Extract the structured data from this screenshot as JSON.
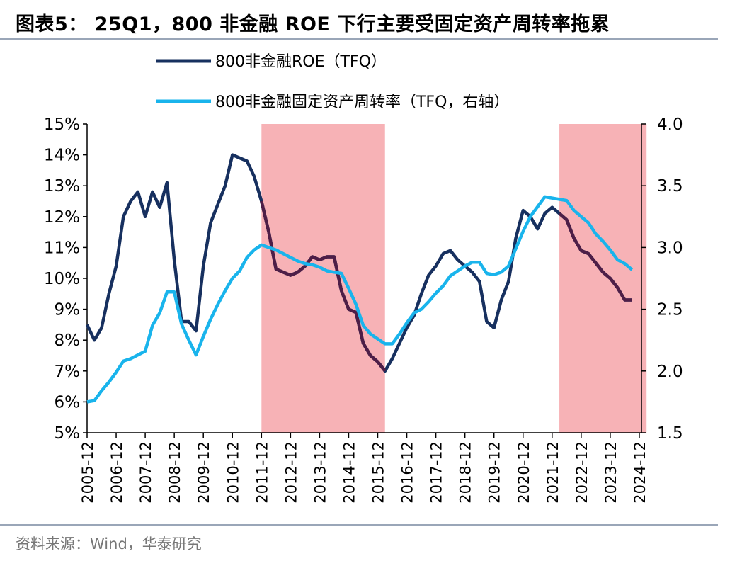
{
  "title": "图表5： 25Q1，800 非金融 ROE 下行主要受固定资产周转率拖累",
  "source": "资料来源：Wind，华泰研究",
  "chart_data": {
    "type": "line",
    "legend": [
      "800非金融ROE（TFQ）",
      "800非金融固定资产周转率（TFQ，右轴）"
    ],
    "colors": {
      "roe": "#17305f",
      "turnover": "#19b4ec",
      "shade": "#f7b2b6"
    },
    "x_tick_labels": [
      "2005-12",
      "2006-12",
      "2007-12",
      "2008-12",
      "2009-12",
      "2010-12",
      "2011-12",
      "2012-12",
      "2013-12",
      "2014-12",
      "2015-12",
      "2016-12",
      "2017-12",
      "2018-12",
      "2019-12",
      "2020-12",
      "2021-12",
      "2022-12",
      "2023-12",
      "2024-12"
    ],
    "y_left": {
      "min": 5,
      "max": 15,
      "step": 1,
      "format": "percent",
      "tick_labels": [
        "5%",
        "6%",
        "7%",
        "8%",
        "9%",
        "10%",
        "11%",
        "12%",
        "13%",
        "14%",
        "15%"
      ]
    },
    "y_right": {
      "min": 1.5,
      "max": 4.0,
      "step": 0.5,
      "tick_labels": [
        "1.5",
        "2.0",
        "2.5",
        "3.0",
        "3.5",
        "4.0"
      ]
    },
    "shaded_periods": [
      [
        "2011-12",
        "2016-03"
      ],
      [
        "2022-03",
        "2025-03"
      ]
    ],
    "highlight_color_in_shaded": "#4e1e47",
    "series": [
      {
        "name": "800非金融ROE（TFQ）",
        "axis": "left",
        "x_start": "2005-12",
        "frequency": "quarterly",
        "values": [
          8.5,
          8.0,
          8.4,
          9.5,
          10.4,
          12.0,
          12.5,
          12.8,
          12.0,
          12.8,
          12.3,
          13.1,
          10.6,
          8.6,
          8.6,
          8.3,
          10.4,
          11.8,
          12.4,
          13.0,
          14.0,
          13.9,
          13.8,
          13.3,
          12.5,
          11.5,
          10.3,
          10.2,
          10.1,
          10.2,
          10.4,
          10.7,
          10.6,
          10.7,
          10.7,
          9.6,
          9.0,
          8.9,
          7.9,
          7.5,
          7.3,
          7.0,
          7.4,
          7.9,
          8.4,
          8.8,
          9.5,
          10.1,
          10.4,
          10.8,
          10.9,
          10.6,
          10.4,
          10.2,
          9.9,
          8.6,
          8.4,
          9.3,
          9.9,
          11.3,
          12.2,
          12.0,
          11.6,
          12.1,
          12.3,
          12.1,
          11.9,
          11.3,
          10.9,
          10.8,
          10.5,
          10.2,
          10.0,
          9.7,
          9.3,
          9.3
        ]
      },
      {
        "name": "800非金融固定资产周转率（TFQ，右轴）",
        "axis": "right",
        "x_start": "2005-12",
        "frequency": "quarterly",
        "values": [
          1.75,
          1.76,
          1.84,
          1.91,
          1.99,
          2.08,
          2.1,
          2.13,
          2.16,
          2.37,
          2.47,
          2.64,
          2.64,
          2.38,
          2.25,
          2.13,
          2.28,
          2.42,
          2.54,
          2.65,
          2.75,
          2.81,
          2.92,
          2.98,
          3.02,
          3.0,
          2.98,
          2.95,
          2.92,
          2.89,
          2.87,
          2.86,
          2.84,
          2.81,
          2.8,
          2.79,
          2.67,
          2.54,
          2.37,
          2.3,
          2.26,
          2.22,
          2.22,
          2.3,
          2.39,
          2.47,
          2.5,
          2.56,
          2.63,
          2.69,
          2.77,
          2.81,
          2.85,
          2.88,
          2.88,
          2.79,
          2.78,
          2.8,
          2.85,
          2.99,
          3.13,
          3.25,
          3.33,
          3.41,
          3.4,
          3.39,
          3.38,
          3.3,
          3.25,
          3.2,
          3.11,
          3.05,
          2.98,
          2.9,
          2.87,
          2.82
        ]
      }
    ]
  }
}
